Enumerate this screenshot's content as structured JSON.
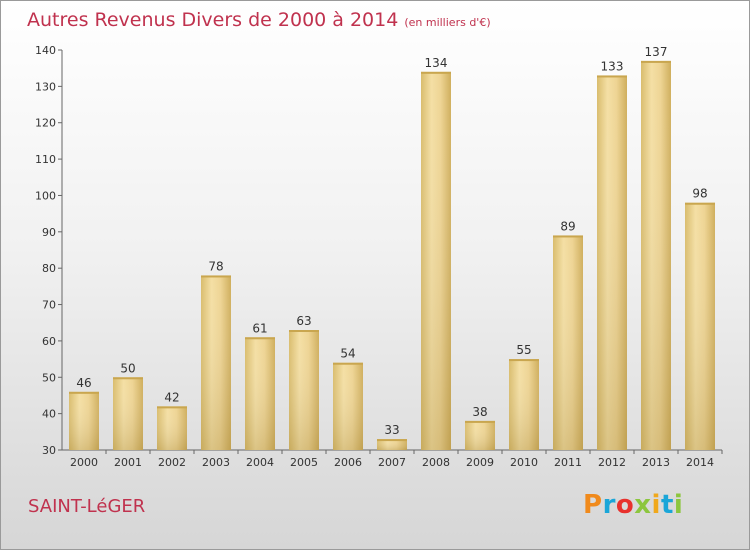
{
  "chart_data": {
    "type": "bar",
    "title": "Autres Revenus Divers de 2000 à 2014",
    "unit": "(en milliers d'€)",
    "categories": [
      "2000",
      "2001",
      "2002",
      "2003",
      "2004",
      "2005",
      "2006",
      "2007",
      "2008",
      "2009",
      "2010",
      "2011",
      "2012",
      "2013",
      "2014"
    ],
    "values": [
      46,
      50,
      42,
      78,
      61,
      63,
      54,
      33,
      134,
      38,
      55,
      89,
      133,
      137,
      98
    ],
    "ylim": [
      30,
      140
    ],
    "yticks": [
      "30",
      "40",
      "50",
      "60",
      "70",
      "80",
      "90",
      "100",
      "110",
      "120",
      "130",
      "140"
    ],
    "grid": false,
    "bar_color": "#e8cf8b"
  },
  "location": "SAINT-LéGER",
  "logo": {
    "letters": [
      "P",
      "r",
      "o",
      "x",
      "i",
      "t",
      "i"
    ],
    "colors": [
      "#f08a1c",
      "#1aa6d8",
      "#e8312d",
      "#8cc63e",
      "#f0a81c",
      "#1aa6d8",
      "#8cc63e"
    ]
  }
}
